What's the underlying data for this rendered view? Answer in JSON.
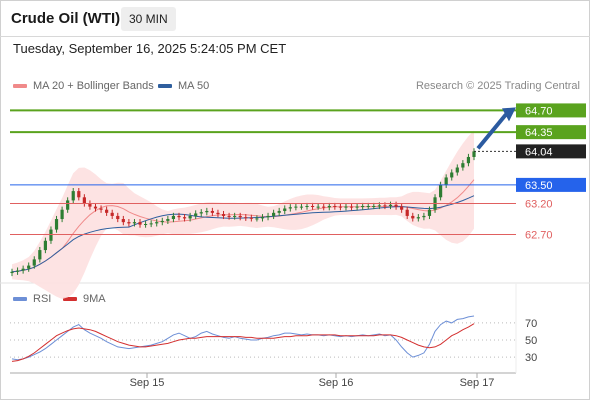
{
  "header": {
    "instrument": "Crude Oil (WTI)",
    "timeframe": "30 MIN"
  },
  "datetime": "Tuesday, September 16, 2025 5:24:05 PM CET",
  "legend": {
    "ma20": "MA 20 + Bollinger Bands",
    "ma50": "MA 50",
    "copyright": "Research © 2025 Trading Central",
    "rsi": "RSI",
    "rsi_ma": "9MA"
  },
  "colors": {
    "ma20": "#f08a8a",
    "ma50": "#2f5f9e",
    "band_fill": "#fde0e0",
    "resistance": "#5aa31e",
    "pivot": "#2563eb",
    "support": "#e06060",
    "candle_up": "#2e7d32",
    "candle_down": "#c62828",
    "rsi": "#6d8fd6",
    "rsi_ma": "#d32f2f"
  },
  "price_levels": [
    {
      "label": "64.70",
      "value": 64.7,
      "kind": "resistance"
    },
    {
      "label": "64.35",
      "value": 64.35,
      "kind": "resistance"
    },
    {
      "label": "63.50",
      "value": 63.5,
      "kind": "pivot"
    },
    {
      "label": "63.20",
      "value": 63.2,
      "kind": "support"
    },
    {
      "label": "62.70",
      "value": 62.7,
      "kind": "support"
    }
  ],
  "last_price": {
    "label": "64.04",
    "value": 64.04
  },
  "rsi_levels": [
    {
      "label": "70",
      "value": 70
    },
    {
      "label": "50",
      "value": 50
    },
    {
      "label": "30",
      "value": 30
    }
  ],
  "x_labels": [
    "Sep 15",
    "Sep 16",
    "Sep 17"
  ],
  "chart_data": {
    "type": "line",
    "title": "",
    "price_range": [
      62.0,
      64.9
    ],
    "price": [
      62.1,
      62.12,
      62.15,
      62.2,
      62.3,
      62.45,
      62.6,
      62.78,
      62.95,
      63.1,
      63.25,
      63.4,
      63.3,
      63.2,
      63.15,
      63.12,
      63.1,
      63.05,
      63.0,
      62.95,
      62.9,
      62.88,
      62.9,
      62.86,
      62.87,
      62.88,
      62.9,
      62.92,
      62.95,
      63.0,
      62.98,
      62.96,
      63.0,
      63.04,
      63.06,
      63.08,
      63.05,
      63.03,
      63.0,
      62.99,
      63.0,
      62.98,
      62.97,
      62.96,
      62.96,
      62.98,
      63.0,
      63.05,
      63.08,
      63.12,
      63.14,
      63.15,
      63.15,
      63.16,
      63.15,
      63.15,
      63.14,
      63.16,
      63.15,
      63.14,
      63.15,
      63.14,
      63.15,
      63.16,
      63.16,
      63.16,
      63.17,
      63.16,
      63.18,
      63.15,
      63.1,
      63.0,
      62.96,
      62.98,
      63.0,
      63.1,
      63.3,
      63.5,
      63.62,
      63.7,
      63.78,
      63.85,
      63.95,
      64.04
    ],
    "rsi": [
      28,
      27,
      28,
      30,
      33,
      36,
      40,
      45,
      50,
      55,
      60,
      65,
      68,
      62,
      58,
      55,
      52,
      48,
      45,
      42,
      41,
      40,
      41,
      42,
      43,
      44,
      46,
      48,
      52,
      56,
      58,
      55,
      52,
      54,
      58,
      60,
      57,
      55,
      53,
      52,
      54,
      52,
      51,
      50,
      50,
      52,
      53,
      55,
      56,
      58,
      58,
      57,
      56,
      57,
      56,
      56,
      55,
      56,
      55,
      54,
      55,
      54,
      55,
      56,
      55,
      56,
      57,
      55,
      56,
      50,
      42,
      35,
      30,
      32,
      35,
      45,
      60,
      68,
      72,
      70,
      74,
      75,
      77,
      78
    ],
    "rsi_ma": [
      25,
      26,
      28,
      31,
      35,
      40,
      45,
      50,
      55,
      58,
      61,
      63,
      64,
      63,
      62,
      60,
      57,
      54,
      51,
      48,
      46,
      44,
      43,
      42,
      42,
      43,
      44,
      45,
      46,
      48,
      50,
      51,
      52,
      52,
      53,
      54,
      54,
      54,
      54,
      54,
      54,
      54,
      53,
      53,
      52,
      52,
      52,
      52,
      53,
      54,
      54,
      55,
      55,
      55,
      56,
      56,
      56,
      56,
      56,
      55,
      55,
      55,
      55,
      55,
      55,
      55,
      56,
      56,
      56,
      55,
      53,
      50,
      47,
      44,
      42,
      41,
      42,
      45,
      50,
      55,
      58,
      62,
      65,
      69
    ]
  }
}
